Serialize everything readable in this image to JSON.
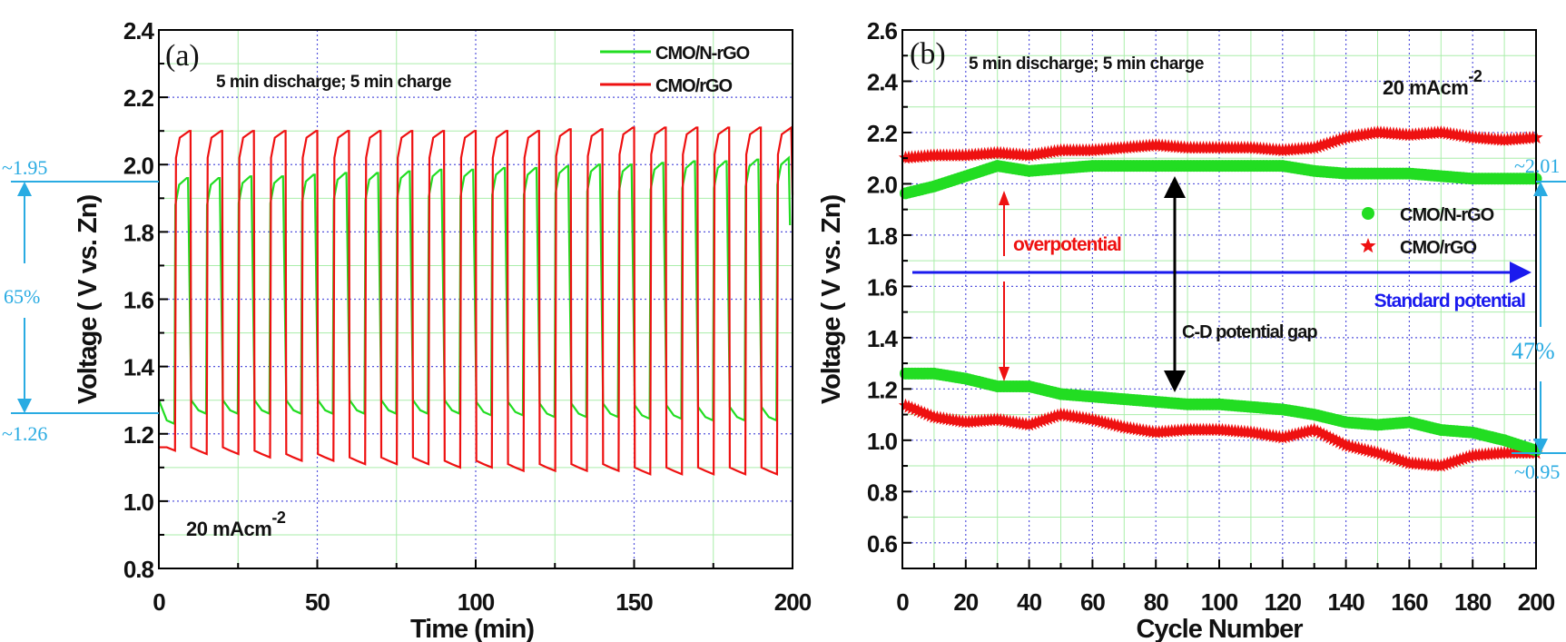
{
  "chart_data": [
    {
      "type": "line",
      "panel_label": "(a)",
      "xlabel": "Time (min)",
      "ylabel": "Voltage ( V vs. Zn)",
      "xlim": [
        0,
        200
      ],
      "ylim": [
        0.8,
        2.4
      ],
      "xticks": [
        0,
        50,
        100,
        150,
        200
      ],
      "yticks": [
        "0.8",
        "1.0",
        "1.2",
        "1.4",
        "1.6",
        "1.8",
        "2.0",
        "2.2",
        "2.4"
      ],
      "grid": true,
      "legend_position": "top-right",
      "annotation_protocol": "5 min discharge; 5 min charge",
      "current_density": "20 mAcm",
      "current_density_exp": "-2",
      "cycle_period_min": 10,
      "series": [
        {
          "name": "CMO/N-rGO",
          "color": "#22dd22",
          "charge_plateau": [
            1.96,
            1.96,
            1.965,
            1.965,
            1.97,
            1.975,
            1.975,
            1.98,
            1.985,
            1.985,
            1.99,
            1.99,
            1.995,
            2.0,
            2.0,
            2.005,
            2.01,
            2.01,
            2.015,
            2.02
          ],
          "discharge_plateau": [
            1.23,
            1.26,
            1.26,
            1.26,
            1.26,
            1.26,
            1.26,
            1.26,
            1.26,
            1.26,
            1.255,
            1.255,
            1.25,
            1.25,
            1.25,
            1.245,
            1.245,
            1.24,
            1.24,
            1.24
          ]
        },
        {
          "name": "CMO/rGO",
          "color": "#ee1111",
          "charge_plateau": [
            2.1,
            2.1,
            2.1,
            2.1,
            2.1,
            2.1,
            2.1,
            2.1,
            2.1,
            2.1,
            2.1,
            2.1,
            2.105,
            2.105,
            2.11,
            2.11,
            2.11,
            2.11,
            2.11,
            2.11
          ],
          "discharge_plateau": [
            1.15,
            1.14,
            1.14,
            1.13,
            1.12,
            1.12,
            1.11,
            1.11,
            1.11,
            1.1,
            1.1,
            1.09,
            1.09,
            1.09,
            1.09,
            1.08,
            1.08,
            1.08,
            1.08,
            1.08
          ]
        }
      ],
      "side_annotations": {
        "upper": "~1.95",
        "lower": "~1.26",
        "efficiency": "65%"
      }
    },
    {
      "type": "scatter",
      "panel_label": "(b)",
      "xlabel": "Cycle Number",
      "ylabel": "Voltage ( V vs. Zn)",
      "xlim": [
        0,
        200
      ],
      "ylim": [
        0.5,
        2.6
      ],
      "xticks": [
        0,
        20,
        40,
        60,
        80,
        100,
        120,
        140,
        160,
        180,
        200
      ],
      "yticks": [
        "0.6",
        "0.8",
        "1.0",
        "1.2",
        "1.4",
        "1.6",
        "1.8",
        "2.0",
        "2.2",
        "2.4",
        "2.6"
      ],
      "grid": true,
      "legend_position": "center-right",
      "annotation_protocol": "5 min discharge; 5 min charge",
      "current_density": "20 mAcm",
      "current_density_exp": "-2",
      "x": [
        0,
        10,
        20,
        30,
        40,
        50,
        60,
        70,
        80,
        90,
        100,
        110,
        120,
        130,
        140,
        150,
        160,
        170,
        180,
        190,
        200
      ],
      "series": [
        {
          "name": "CMO/N-rGO",
          "marker": "circle",
          "color": "#22dd22",
          "charge": [
            1.96,
            1.99,
            2.03,
            2.07,
            2.05,
            2.06,
            2.07,
            2.07,
            2.07,
            2.07,
            2.07,
            2.07,
            2.07,
            2.05,
            2.04,
            2.04,
            2.04,
            2.03,
            2.02,
            2.02,
            2.02
          ],
          "discharge": [
            1.26,
            1.26,
            1.24,
            1.21,
            1.21,
            1.18,
            1.17,
            1.16,
            1.15,
            1.14,
            1.14,
            1.13,
            1.12,
            1.1,
            1.07,
            1.06,
            1.07,
            1.04,
            1.03,
            1.0,
            0.96
          ]
        },
        {
          "name": "CMO/rGO",
          "marker": "star",
          "color": "#ee1111",
          "charge": [
            2.1,
            2.11,
            2.11,
            2.12,
            2.11,
            2.13,
            2.13,
            2.14,
            2.15,
            2.14,
            2.14,
            2.14,
            2.13,
            2.14,
            2.18,
            2.2,
            2.19,
            2.2,
            2.18,
            2.17,
            2.18
          ],
          "discharge": [
            1.14,
            1.09,
            1.07,
            1.08,
            1.06,
            1.1,
            1.08,
            1.05,
            1.03,
            1.04,
            1.04,
            1.03,
            1.01,
            1.04,
            0.98,
            0.95,
            0.91,
            0.9,
            0.94,
            0.95,
            0.95
          ]
        }
      ],
      "standard_potential": 1.65,
      "annotations": {
        "overpotential": "overpotential",
        "standard": "Standard potential",
        "gap": "C-D potential gap"
      },
      "side_annotations": {
        "upper": "~2.01",
        "lower": "~0.95",
        "efficiency": "47%"
      }
    }
  ]
}
